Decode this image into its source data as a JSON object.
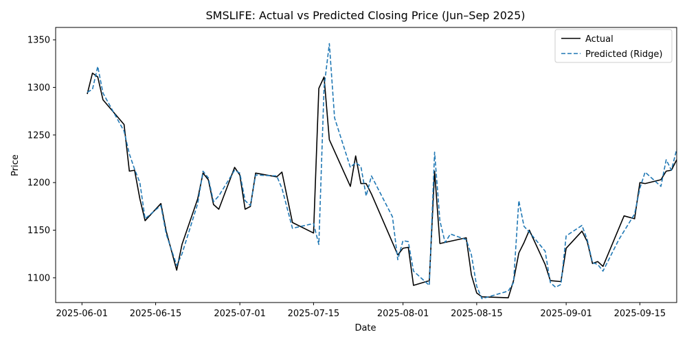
{
  "chart_data": {
    "type": "line",
    "title": "SMSLIFE: Actual vs Predicted Closing Price (Jun–Sep 2025)",
    "xlabel": "Date",
    "ylabel": "Price",
    "xlim": [
      "2025-05-27",
      "2025-09-22"
    ],
    "ylim": [
      1074,
      1363
    ],
    "grid": false,
    "legend_position": "top-right",
    "x_ticks": [
      "2025-06-01",
      "2025-06-15",
      "2025-07-01",
      "2025-07-15",
      "2025-08-01",
      "2025-08-15",
      "2025-09-01",
      "2025-09-15"
    ],
    "y_ticks": [
      1100,
      1150,
      1200,
      1250,
      1300,
      1350
    ],
    "series": [
      {
        "name": "Actual",
        "color": "#000000",
        "style": "solid",
        "points": [
          [
            "2025-06-02",
            1293
          ],
          [
            "2025-06-03",
            1315
          ],
          [
            "2025-06-04",
            1311
          ],
          [
            "2025-06-05",
            1287
          ],
          [
            "2025-06-09",
            1261
          ],
          [
            "2025-06-10",
            1212
          ],
          [
            "2025-06-11",
            1213
          ],
          [
            "2025-06-12",
            1183
          ],
          [
            "2025-06-13",
            1160
          ],
          [
            "2025-06-16",
            1178
          ],
          [
            "2025-06-17",
            1149
          ],
          [
            "2025-06-19",
            1108
          ],
          [
            "2025-06-20",
            1135
          ],
          [
            "2025-06-23",
            1183
          ],
          [
            "2025-06-24",
            1210
          ],
          [
            "2025-06-25",
            1203
          ],
          [
            "2025-06-26",
            1177
          ],
          [
            "2025-06-27",
            1172
          ],
          [
            "2025-06-30",
            1216
          ],
          [
            "2025-07-01",
            1208
          ],
          [
            "2025-07-02",
            1172
          ],
          [
            "2025-07-03",
            1175
          ],
          [
            "2025-07-04",
            1210
          ],
          [
            "2025-07-08",
            1206
          ],
          [
            "2025-07-09",
            1211
          ],
          [
            "2025-07-11",
            1158
          ],
          [
            "2025-07-15",
            1147
          ],
          [
            "2025-07-16",
            1299
          ],
          [
            "2025-07-17",
            1311
          ],
          [
            "2025-07-18",
            1245
          ],
          [
            "2025-07-22",
            1196
          ],
          [
            "2025-07-23",
            1228
          ],
          [
            "2025-07-24",
            1199
          ],
          [
            "2025-07-25",
            1199
          ],
          [
            "2025-07-26",
            1188
          ],
          [
            "2025-07-30",
            1137
          ],
          [
            "2025-07-31",
            1124
          ],
          [
            "2025-08-01",
            1131
          ],
          [
            "2025-08-02",
            1132
          ],
          [
            "2025-08-03",
            1092
          ],
          [
            "2025-08-06",
            1097
          ],
          [
            "2025-08-07",
            1212
          ],
          [
            "2025-08-08",
            1136
          ],
          [
            "2025-08-13",
            1142
          ],
          [
            "2025-08-14",
            1103
          ],
          [
            "2025-08-15",
            1084
          ],
          [
            "2025-08-16",
            1080
          ],
          [
            "2025-08-21",
            1079
          ],
          [
            "2025-08-22",
            1097
          ],
          [
            "2025-08-23",
            1126
          ],
          [
            "2025-08-24",
            1137
          ],
          [
            "2025-08-25",
            1150
          ],
          [
            "2025-08-28",
            1114
          ],
          [
            "2025-08-29",
            1097
          ],
          [
            "2025-08-31",
            1096
          ],
          [
            "2025-09-01",
            1131
          ],
          [
            "2025-09-04",
            1149
          ],
          [
            "2025-09-05",
            1138
          ],
          [
            "2025-09-06",
            1115
          ],
          [
            "2025-09-07",
            1117
          ],
          [
            "2025-09-08",
            1112
          ],
          [
            "2025-09-12",
            1165
          ],
          [
            "2025-09-14",
            1162
          ],
          [
            "2025-09-15",
            1200
          ],
          [
            "2025-09-16",
            1199
          ],
          [
            "2025-09-19",
            1203
          ],
          [
            "2025-09-20",
            1212
          ],
          [
            "2025-09-21",
            1213
          ],
          [
            "2025-09-22",
            1224
          ]
        ]
      },
      {
        "name": "Predicted (Ridge)",
        "color": "#1f77b4",
        "style": "dashed",
        "points": [
          [
            "2025-06-02",
            1295
          ],
          [
            "2025-06-03",
            1298
          ],
          [
            "2025-06-04",
            1322
          ],
          [
            "2025-06-05",
            1294
          ],
          [
            "2025-06-09",
            1254
          ],
          [
            "2025-06-10",
            1230
          ],
          [
            "2025-06-11",
            1214
          ],
          [
            "2025-06-12",
            1200
          ],
          [
            "2025-06-13",
            1162
          ],
          [
            "2025-06-16",
            1176
          ],
          [
            "2025-06-17",
            1146
          ],
          [
            "2025-06-19",
            1113
          ],
          [
            "2025-06-20",
            1125
          ],
          [
            "2025-06-23",
            1178
          ],
          [
            "2025-06-24",
            1212
          ],
          [
            "2025-06-25",
            1205
          ],
          [
            "2025-06-26",
            1180
          ],
          [
            "2025-06-27",
            1186
          ],
          [
            "2025-06-30",
            1213
          ],
          [
            "2025-07-01",
            1210
          ],
          [
            "2025-07-02",
            1181
          ],
          [
            "2025-07-03",
            1176
          ],
          [
            "2025-07-04",
            1208
          ],
          [
            "2025-07-08",
            1207
          ],
          [
            "2025-07-09",
            1194
          ],
          [
            "2025-07-11",
            1152
          ],
          [
            "2025-07-15",
            1157
          ],
          [
            "2025-07-16",
            1135
          ],
          [
            "2025-07-17",
            1300
          ],
          [
            "2025-07-18",
            1346
          ],
          [
            "2025-07-19",
            1268
          ],
          [
            "2025-07-22",
            1216
          ],
          [
            "2025-07-23",
            1221
          ],
          [
            "2025-07-24",
            1217
          ],
          [
            "2025-07-25",
            1186
          ],
          [
            "2025-07-26",
            1207
          ],
          [
            "2025-07-30",
            1164
          ],
          [
            "2025-07-31",
            1119
          ],
          [
            "2025-08-01",
            1139
          ],
          [
            "2025-08-02",
            1138
          ],
          [
            "2025-08-03",
            1107
          ],
          [
            "2025-08-06",
            1092
          ],
          [
            "2025-08-07",
            1232
          ],
          [
            "2025-08-08",
            1160
          ],
          [
            "2025-08-09",
            1137
          ],
          [
            "2025-08-10",
            1146
          ],
          [
            "2025-08-13",
            1140
          ],
          [
            "2025-08-14",
            1124
          ],
          [
            "2025-08-15",
            1091
          ],
          [
            "2025-08-16",
            1078
          ],
          [
            "2025-08-21",
            1086
          ],
          [
            "2025-08-22",
            1095
          ],
          [
            "2025-08-23",
            1181
          ],
          [
            "2025-08-24",
            1154
          ],
          [
            "2025-08-25",
            1148
          ],
          [
            "2025-08-28",
            1128
          ],
          [
            "2025-08-29",
            1095
          ],
          [
            "2025-08-30",
            1090
          ],
          [
            "2025-08-31",
            1093
          ],
          [
            "2025-09-01",
            1144
          ],
          [
            "2025-09-04",
            1155
          ],
          [
            "2025-09-05",
            1140
          ],
          [
            "2025-09-06",
            1116
          ],
          [
            "2025-09-07",
            1114
          ],
          [
            "2025-09-08",
            1107
          ],
          [
            "2025-09-11",
            1140
          ],
          [
            "2025-09-14",
            1167
          ],
          [
            "2025-09-15",
            1194
          ],
          [
            "2025-09-16",
            1211
          ],
          [
            "2025-09-19",
            1196
          ],
          [
            "2025-09-20",
            1224
          ],
          [
            "2025-09-21",
            1213
          ],
          [
            "2025-09-22",
            1235
          ]
        ]
      }
    ]
  }
}
